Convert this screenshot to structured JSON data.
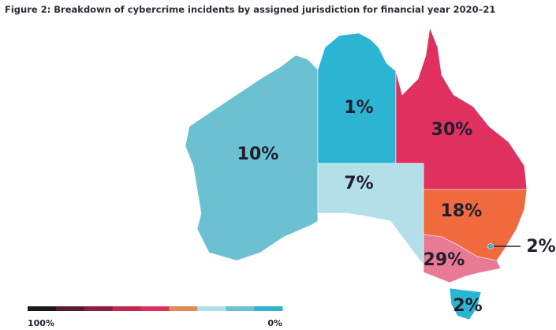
{
  "title": "Figure 2: Breakdown of cybercrime incidents by assigned jurisdiction for financial year 2020–21",
  "map": {
    "values": [
      10,
      1,
      30,
      7,
      18,
      29,
      2,
      2
    ],
    "value_labels": [
      "10%",
      "1%",
      "30%",
      "7%",
      "18%",
      "29%",
      "2%",
      "2%"
    ],
    "colors": [
      "#6bc1d1",
      "#2bb5d3",
      "#e03060",
      "#b3e0e8",
      "#f06a3e",
      "#e97a93",
      "#3aaec9",
      "#2bb5d3"
    ]
  },
  "legend": {
    "colors": [
      "#1a1a1a",
      "#5a1a2a",
      "#8a2040",
      "#c02850",
      "#e03060",
      "#e08a55",
      "#b3e0e8",
      "#6bc1d1",
      "#2bb5d3"
    ],
    "max": {
      "value": 100,
      "label": "100%"
    },
    "min": {
      "value": 0,
      "label": "0%"
    }
  }
}
